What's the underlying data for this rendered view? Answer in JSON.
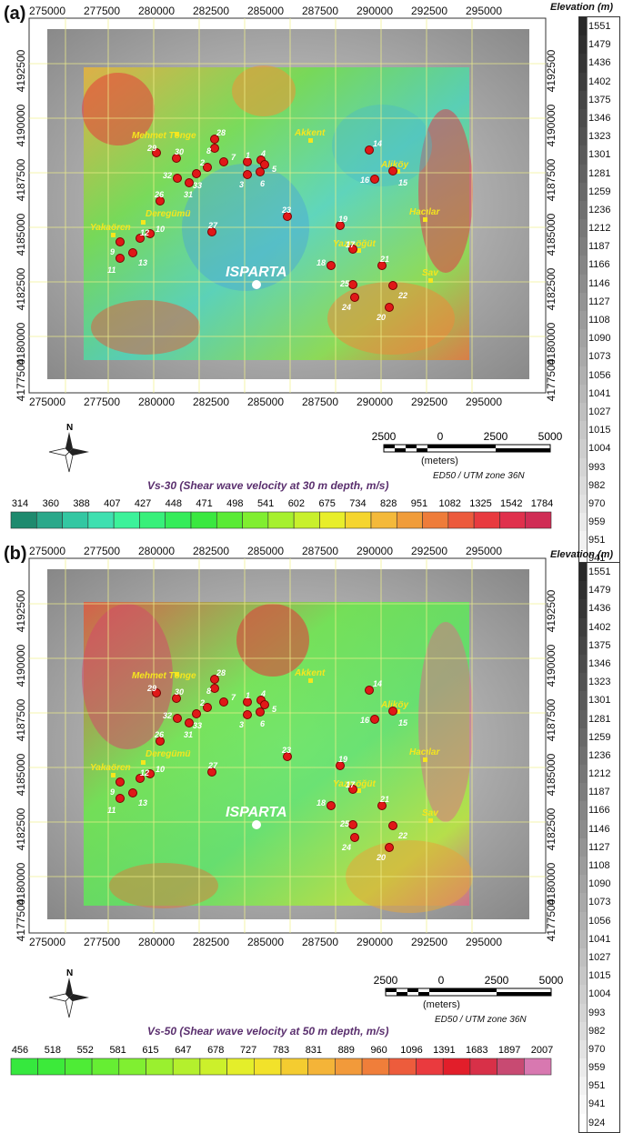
{
  "panels": [
    {
      "label": "(a)",
      "x_ticks": [
        "275000",
        "277500",
        "280000",
        "282500",
        "285000",
        "287500",
        "290000",
        "292500",
        "295000"
      ],
      "y_ticks": [
        "4192500",
        "4190000",
        "4187500",
        "4185000",
        "4182500",
        "4180000",
        "4177500"
      ],
      "city": "ISPARTA",
      "towns": [
        "Mehmet Tönge",
        "Akkent",
        "Aliköy",
        "Deregümü",
        "Hacılar",
        "Yakaören",
        "Yazısöğüt",
        "Sav"
      ],
      "site_numbers": [
        "1",
        "2",
        "3",
        "4",
        "5",
        "6",
        "7",
        "8",
        "9",
        "10",
        "11",
        "12",
        "13",
        "14",
        "15",
        "16",
        "17",
        "18",
        "19",
        "20",
        "21",
        "22",
        "23",
        "24",
        "25",
        "26",
        "27",
        "28",
        "29",
        "30",
        "31",
        "32",
        "33"
      ],
      "scale_bar": {
        "ticks": [
          "2500",
          "0",
          "2500",
          "5000"
        ],
        "unit": "(meters)"
      },
      "projection": "ED50 / UTM zone 36N",
      "legend": {
        "title": "Vs-30 (Shear wave velocity at 30 m depth, m/s)",
        "labels": [
          "314",
          "360",
          "388",
          "407",
          "427",
          "448",
          "471",
          "498",
          "541",
          "602",
          "675",
          "734",
          "828",
          "951",
          "1082",
          "1325",
          "1542",
          "1784"
        ],
        "colors": [
          "#1e8a6e",
          "#2aa88a",
          "#33c7a2",
          "#3fe0b0",
          "#3cf29a",
          "#38f07a",
          "#35ec5a",
          "#3ae840",
          "#5aeb35",
          "#80ee30",
          "#a6f02e",
          "#c8f02c",
          "#e8ee2a",
          "#f5d52e",
          "#f4b93a",
          "#f09c3a",
          "#ee7c3a",
          "#ec5a3c",
          "#e83a3f",
          "#e0304c",
          "#d02d55"
        ]
      },
      "north": "N"
    },
    {
      "label": "(b)",
      "x_ticks": [
        "275000",
        "277500",
        "280000",
        "282500",
        "285000",
        "287500",
        "290000",
        "292500",
        "295000"
      ],
      "y_ticks": [
        "4192500",
        "4190000",
        "4187500",
        "4185000",
        "4182500",
        "4180000",
        "4177500"
      ],
      "city": "ISPARTA",
      "towns": [
        "Mehmet Tönge",
        "Akkent",
        "Aliköy",
        "Deregümü",
        "Hacılar",
        "Yakaören",
        "Yazısöğüt",
        "Sav"
      ],
      "site_numbers": [
        "1",
        "2",
        "3",
        "4",
        "5",
        "6",
        "7",
        "8",
        "9",
        "10",
        "11",
        "12",
        "13",
        "14",
        "15",
        "16",
        "17",
        "18",
        "19",
        "20",
        "21",
        "22",
        "23",
        "24",
        "25",
        "26",
        "27",
        "28",
        "29",
        "30",
        "31",
        "32",
        "33"
      ],
      "scale_bar": {
        "ticks": [
          "2500",
          "0",
          "2500",
          "5000"
        ],
        "unit": "(meters)"
      },
      "projection": "ED50 / UTM zone 36N",
      "legend": {
        "title": "Vs-50 (Shear wave velocity at 50 m depth, m/s)",
        "labels": [
          "456",
          "518",
          "552",
          "581",
          "615",
          "647",
          "678",
          "727",
          "783",
          "831",
          "889",
          "960",
          "1096",
          "1391",
          "1683",
          "1897",
          "2007"
        ],
        "colors": [
          "#36e83e",
          "#3cea3a",
          "#4eec36",
          "#66ee33",
          "#80ef31",
          "#9af02f",
          "#b4f02d",
          "#ccf02b",
          "#e4ee2a",
          "#f2e22a",
          "#f4cc30",
          "#f4b438",
          "#f29a3a",
          "#f07e3a",
          "#ed5c3c",
          "#ea3a3e",
          "#e21e2a",
          "#d83048",
          "#c84a72",
          "#d878b0"
        ]
      },
      "north": "N"
    }
  ],
  "elevation": {
    "title": "Elevation (m)",
    "labels": [
      "1551",
      "1479",
      "1436",
      "1402",
      "1375",
      "1346",
      "1323",
      "1301",
      "1281",
      "1259",
      "1236",
      "1212",
      "1187",
      "1166",
      "1146",
      "1127",
      "1108",
      "1090",
      "1073",
      "1056",
      "1041",
      "1027",
      "1015",
      "1004",
      "993",
      "982",
      "970",
      "959",
      "951",
      "941",
      "924"
    ]
  }
}
